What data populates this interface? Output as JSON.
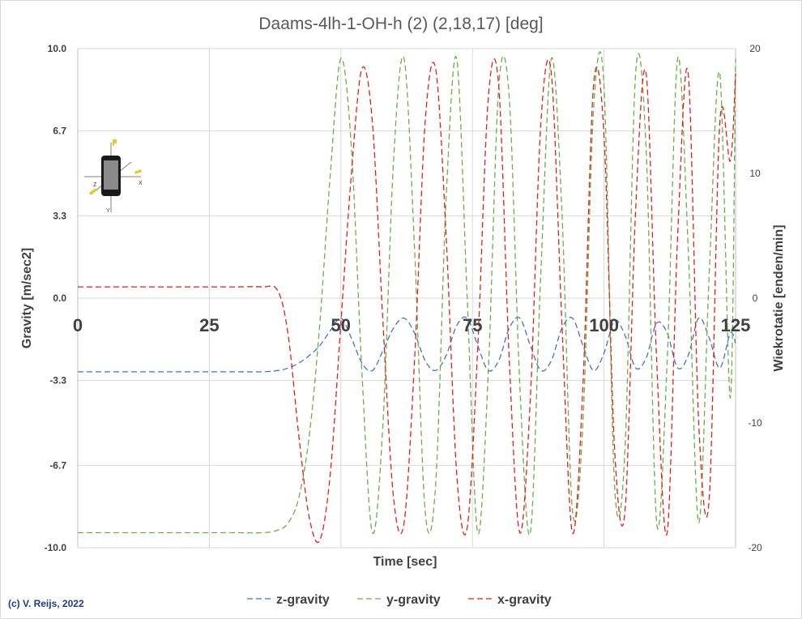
{
  "chart_data": {
    "type": "line",
    "title": "Daams-4lh-1-OH-h (2) (2,18,17) [deg]",
    "xlabel": "Time [sec]",
    "ylabel": "Gravity  [m/sec2]",
    "y2label": "Wiekrotatie  [enden/min]",
    "xlim": [
      0,
      125
    ],
    "ylim": [
      -10.0,
      10.0
    ],
    "y2lim": [
      -20,
      20
    ],
    "x_ticks": [
      "0",
      "25",
      "50",
      "75",
      "100",
      "125"
    ],
    "x_tick_values": [
      0,
      25,
      50,
      75,
      100,
      125
    ],
    "y_ticks": [
      "10.0",
      "6.7",
      "3.3",
      "0.0",
      "-3.3",
      "-6.7",
      "-10.0"
    ],
    "y_tick_values": [
      10.0,
      6.7,
      3.3,
      0.0,
      -3.3,
      -6.7,
      -10.0
    ],
    "y2_ticks": [
      "20",
      "10",
      "0",
      "-10",
      "-20"
    ],
    "y2_tick_values": [
      20,
      10,
      0,
      -10,
      -20
    ],
    "grid": true,
    "legend_position": "bottom",
    "credit": "(c) V. Reijs, 2022",
    "series": [
      {
        "name": "z-gravity",
        "color": "#4472c4",
        "x": [
          0,
          5,
          10,
          15,
          20,
          25,
          30,
          35,
          38,
          40,
          42,
          44,
          46,
          48,
          50,
          52,
          54,
          56,
          58,
          60,
          62,
          64,
          66,
          68,
          70,
          72,
          74,
          76,
          78,
          80,
          82,
          84,
          86,
          88,
          90,
          92,
          94,
          96,
          98,
          100,
          102,
          104,
          106,
          108,
          110,
          112,
          114,
          116,
          118,
          120,
          122,
          124,
          125
        ],
        "values": [
          -2.95,
          -2.95,
          -2.95,
          -2.95,
          -2.95,
          -2.95,
          -2.95,
          -2.95,
          -2.9,
          -2.8,
          -2.6,
          -2.3,
          -1.9,
          -1.3,
          -0.8,
          -1.6,
          -2.6,
          -2.9,
          -2.1,
          -1.2,
          -0.8,
          -1.4,
          -2.5,
          -2.9,
          -2.3,
          -1.1,
          -0.8,
          -1.9,
          -2.9,
          -2.5,
          -1.2,
          -0.8,
          -1.9,
          -2.9,
          -2.5,
          -1.2,
          -0.8,
          -1.9,
          -2.9,
          -2.2,
          -0.9,
          -1.5,
          -2.8,
          -2.4,
          -1.0,
          -1.4,
          -2.8,
          -2.3,
          -0.8,
          -1.6,
          -2.8,
          -1.4,
          -1.8
        ]
      },
      {
        "name": "y-gravity",
        "color": "#70ad47",
        "x": [
          0,
          5,
          10,
          15,
          20,
          25,
          30,
          35,
          38,
          40,
          42,
          44,
          46,
          48,
          50,
          52,
          54,
          56,
          58,
          60,
          62,
          64,
          66,
          68,
          70,
          72,
          74,
          76,
          78,
          80,
          82,
          84,
          86,
          88,
          90,
          92,
          94,
          96,
          98,
          100,
          102,
          104,
          106,
          108,
          110,
          112,
          114,
          116,
          118,
          120,
          122,
          124,
          125
        ],
        "values": [
          -9.4,
          -9.4,
          -9.4,
          -9.4,
          -9.4,
          -9.4,
          -9.4,
          -9.4,
          -9.3,
          -9.0,
          -8.0,
          -5.5,
          -1.0,
          5.0,
          9.6,
          6.0,
          -3.0,
          -9.4,
          -5.0,
          5.5,
          9.6,
          2.0,
          -8.5,
          -7.5,
          4.0,
          9.6,
          0.0,
          -9.4,
          -3.0,
          8.5,
          8.0,
          -3.5,
          -9.4,
          1.0,
          9.6,
          3.5,
          -8.5,
          -5.0,
          7.5,
          8.5,
          -7.5,
          -6.0,
          9.0,
          6.0,
          -9.0,
          -2.5,
          9.6,
          2.0,
          -9.0,
          1.0,
          9.0,
          -4.0,
          9.6
        ]
      },
      {
        "name": "x-gravity",
        "color": "#e0201b",
        "x": [
          0,
          5,
          10,
          15,
          20,
          25,
          30,
          35,
          38,
          40,
          42,
          44,
          46,
          48,
          50,
          52,
          54,
          56,
          58,
          60,
          62,
          64,
          66,
          68,
          70,
          72,
          74,
          76,
          78,
          80,
          82,
          84,
          86,
          88,
          90,
          92,
          94,
          96,
          98,
          100,
          102,
          104,
          106,
          108,
          110,
          112,
          114,
          116,
          118,
          120,
          122,
          124,
          125
        ],
        "values": [
          0.45,
          0.45,
          0.45,
          0.45,
          0.45,
          0.45,
          0.45,
          0.45,
          0.3,
          -1.5,
          -5.5,
          -8.8,
          -9.7,
          -7.0,
          -1.0,
          5.0,
          9.2,
          7.0,
          -1.0,
          -8.0,
          -9.0,
          -2.5,
          7.0,
          9.2,
          2.5,
          -7.0,
          -9.2,
          -2.0,
          8.0,
          8.5,
          -2.5,
          -9.4,
          -4.0,
          7.0,
          9.0,
          -1.0,
          -9.4,
          -3.5,
          8.5,
          6.5,
          -6.0,
          -8.5,
          3.5,
          9.0,
          -2.5,
          -9.4,
          2.5,
          9.0,
          -5.0,
          -8.0,
          7.0,
          5.5,
          9.0
        ]
      }
    ]
  }
}
